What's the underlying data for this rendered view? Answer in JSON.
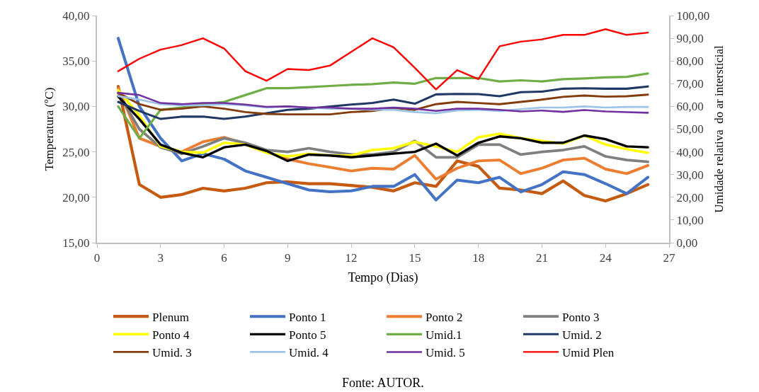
{
  "chart_data": {
    "type": "line",
    "xlabel": "Tempo (Dias)",
    "ylabel": "Temperatura (ºC)",
    "y2label": "Umidade relativa  do ar intersticial",
    "x": [
      1,
      2,
      3,
      4,
      5,
      6,
      7,
      8,
      9,
      10,
      11,
      12,
      13,
      14,
      15,
      16,
      17,
      18,
      19,
      20,
      21,
      22,
      23,
      24,
      25,
      26
    ],
    "xlim": [
      0,
      27
    ],
    "xticks": [
      0,
      3,
      6,
      9,
      12,
      15,
      18,
      21,
      24,
      27
    ],
    "ylim": [
      15,
      40
    ],
    "yticks": [
      {
        "value": 15,
        "label": "15,00"
      },
      {
        "value": 20,
        "label": "20,00"
      },
      {
        "value": 25,
        "label": "25,00"
      },
      {
        "value": 30,
        "label": "30,00"
      },
      {
        "value": 35,
        "label": "35,00"
      },
      {
        "value": 40,
        "label": "40,00"
      }
    ],
    "y2lim": [
      0,
      100
    ],
    "y2ticks": [
      {
        "value": 0,
        "label": "0,00"
      },
      {
        "value": 10,
        "label": "10,00"
      },
      {
        "value": 20,
        "label": "20,00"
      },
      {
        "value": 30,
        "label": "30,00"
      },
      {
        "value": 40,
        "label": "40,00"
      },
      {
        "value": 50,
        "label": "50,00"
      },
      {
        "value": 60,
        "label": "60,00"
      },
      {
        "value": 70,
        "label": "70,00"
      },
      {
        "value": 80,
        "label": "80,00"
      },
      {
        "value": 90,
        "label": "90,00"
      },
      {
        "value": 100,
        "label": "100,00"
      }
    ],
    "grid": false,
    "legend": "bottom",
    "marker": "none",
    "line_style": "solid",
    "annotations": [
      "Fonte: AUTOR."
    ],
    "series": [
      {
        "name": "Plenum",
        "color": "#c55a11",
        "values": [
          32.2,
          21.4,
          20.0,
          20.3,
          21.0,
          20.7,
          21.0,
          21.6,
          21.7,
          21.5,
          21.5,
          21.3,
          21.1,
          20.7,
          21.6,
          21.2,
          24.0,
          23.4,
          21.0,
          20.8,
          20.4,
          21.8,
          20.2,
          19.6,
          20.4,
          21.4
        ]
      },
      {
        "name": "Ponto 1",
        "color": "#4472c4",
        "values": [
          37.5,
          30.0,
          26.5,
          24.0,
          24.8,
          24.2,
          22.9,
          22.2,
          21.5,
          20.8,
          20.6,
          20.7,
          21.2,
          21.2,
          22.5,
          19.7,
          21.9,
          21.6,
          22.2,
          20.6,
          21.4,
          22.8,
          22.5,
          21.5,
          20.4,
          22.2
        ]
      },
      {
        "name": "Ponto 2",
        "color": "#ed7d31",
        "values": [
          32.0,
          26.5,
          25.6,
          25.0,
          26.1,
          26.6,
          25.9,
          25.0,
          24.2,
          23.7,
          23.3,
          22.9,
          23.2,
          23.1,
          24.6,
          22.0,
          23.2,
          24.0,
          24.1,
          22.6,
          23.2,
          24.1,
          24.3,
          23.1,
          22.6,
          23.5
        ]
      },
      {
        "name": "Ponto 3",
        "color": "#7f7f7f",
        "values": [
          31.5,
          27.5,
          25.5,
          24.8,
          25.6,
          26.5,
          26.0,
          25.2,
          25.0,
          25.4,
          25.0,
          24.7,
          24.7,
          25.0,
          26.2,
          24.4,
          24.4,
          25.8,
          25.8,
          24.7,
          25.0,
          25.2,
          25.6,
          24.5,
          24.1,
          23.9
        ]
      },
      {
        "name": "Ponto 4",
        "color": "#ffff00",
        "values": [
          31.8,
          29.0,
          25.6,
          25.0,
          24.9,
          26.0,
          25.8,
          24.9,
          24.5,
          24.8,
          24.6,
          24.6,
          25.2,
          25.4,
          26.1,
          25.6,
          25.0,
          26.6,
          27.0,
          26.5,
          26.2,
          25.9,
          26.8,
          25.8,
          25.3,
          24.9
        ]
      },
      {
        "name": "Ponto 5",
        "color": "#000000",
        "values": [
          31.1,
          28.6,
          25.8,
          24.9,
          24.4,
          25.5,
          25.8,
          25.1,
          24.0,
          24.7,
          24.6,
          24.4,
          24.6,
          24.8,
          25.0,
          25.9,
          24.6,
          26.0,
          26.7,
          26.5,
          26.0,
          26.0,
          26.8,
          26.4,
          25.6,
          25.5
        ]
      },
      {
        "name": "Umid.1",
        "color": "#70ad47",
        "axis": "y2",
        "values": [
          60,
          46,
          58.5,
          59.5,
          61,
          62,
          65,
          68,
          68,
          68.5,
          69,
          69.5,
          69.8,
          70.5,
          70,
          72.5,
          72.5,
          72.5,
          71,
          71.5,
          71,
          72,
          72.3,
          72.8,
          73,
          74.5
        ]
      },
      {
        "name": "Umid. 2",
        "color": "#1f3864",
        "axis": "y2",
        "values": [
          62,
          58,
          54.5,
          55.5,
          55.5,
          54.5,
          55.5,
          57,
          58.5,
          59,
          60,
          60.8,
          61.5,
          63,
          61.2,
          65.3,
          65.5,
          65.4,
          64.5,
          66.3,
          66.5,
          67.8,
          68,
          67.8,
          67.8,
          68.8
        ]
      },
      {
        "name": "Umid. 3",
        "color": "#843c0c",
        "axis": "y2",
        "values": [
          66,
          61,
          58.5,
          59,
          60,
          59,
          57.5,
          56.7,
          56.5,
          56.5,
          56.5,
          57.5,
          58,
          59.3,
          58.5,
          61,
          62,
          61.5,
          61,
          62,
          63,
          64.2,
          64.8,
          64.3,
          64.5,
          65.2
        ]
      },
      {
        "name": "Umid. 4",
        "color": "#9dc3e6",
        "axis": "y2",
        "values": [
          64.5,
          63,
          61,
          60.5,
          60.5,
          61,
          60.5,
          59.5,
          60,
          59.5,
          59,
          59,
          58.5,
          58.5,
          57.5,
          57,
          58.2,
          58.5,
          58,
          58.8,
          59.5,
          59.5,
          60,
          59.5,
          59.8,
          59.8
        ]
      },
      {
        "name": "Umid. 5",
        "color": "#7030a0",
        "axis": "y2",
        "values": [
          66,
          65,
          61.5,
          61,
          61.5,
          61.5,
          60.8,
          59.8,
          60,
          59.5,
          59.5,
          59,
          59,
          59.5,
          59,
          58,
          59,
          59,
          58.5,
          57.8,
          58.2,
          57.6,
          58.4,
          57.8,
          57.5,
          57.2
        ]
      },
      {
        "name": "Umid Plen",
        "color": "#ff0000",
        "axis": "y2",
        "values": [
          75.5,
          81,
          85,
          87,
          90,
          85.5,
          75.5,
          71.3,
          76.5,
          76,
          78,
          84,
          90,
          86,
          77,
          67.5,
          76,
          72,
          86.5,
          88.5,
          89.5,
          91.5,
          91.5,
          94,
          91.5,
          92.5
        ]
      }
    ]
  }
}
